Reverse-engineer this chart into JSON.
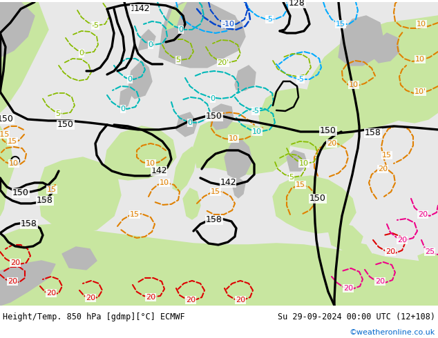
{
  "title_left": "Height/Temp. 850 hPa [gdmp][°C] ECMWF",
  "title_right": "Su 29-09-2024 00:00 UTC (12+108)",
  "credit": "©weatheronline.co.uk",
  "credit_color": "#0066cc",
  "fig_width": 6.34,
  "fig_height": 4.9,
  "dpi": 100,
  "sea_color": "#e8e8e8",
  "land_green": "#c8e6a0",
  "land_gray": "#b8b8b8",
  "footer_fontsize": 8.5,
  "credit_fontsize": 8.0
}
